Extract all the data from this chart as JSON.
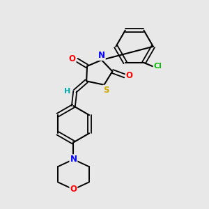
{
  "bg_color": "#e8e8e8",
  "bond_color": "#000000",
  "atom_colors": {
    "O": "#ff0000",
    "N": "#0000ff",
    "S": "#ccaa00",
    "Cl": "#00bb00",
    "H": "#00aaaa",
    "C": "#000000"
  },
  "figsize": [
    3.0,
    3.0
  ],
  "dpi": 100
}
